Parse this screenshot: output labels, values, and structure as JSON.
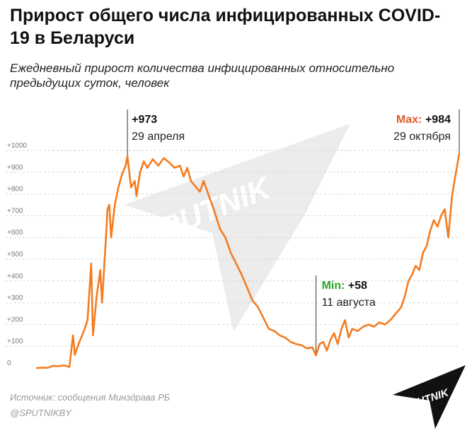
{
  "title": "Прирост общего числа инфицированных COVID-19 в Беларуси",
  "subtitle": "Ежедневный прирост количества инфицированных относительно предыдущих суток, человек",
  "source": "Источник: сообщения Минздрава РБ",
  "handle": "@SPUTNIKBY",
  "logo_text": "SPUTNIK",
  "watermark_text": "SPUTNIK",
  "colors": {
    "line": "#f47c20",
    "max_label": "#e05a2a",
    "min_label": "#2aa52a",
    "grid": "#d6d6d6",
    "annotation_line": "#333333"
  },
  "chart_data": {
    "type": "line",
    "ylim": [
      0,
      1000
    ],
    "yticks": [
      0,
      100,
      200,
      300,
      400,
      500,
      600,
      700,
      800,
      900,
      1000
    ],
    "ytick_labels": [
      "0",
      "+100",
      "+200",
      "+300",
      "+400",
      "+500",
      "+600",
      "+700",
      "+800",
      "+900",
      "+1000"
    ],
    "grid": "horizontal dashed",
    "x_start": "2020-03-10",
    "x_end": "2020-10-29",
    "series": [
      {
        "points": [
          [
            "2020-03-10",
            0
          ],
          [
            "2020-03-14",
            2
          ],
          [
            "2020-03-16",
            1
          ],
          [
            "2020-03-19",
            10
          ],
          [
            "2020-03-22",
            8
          ],
          [
            "2020-03-25",
            12
          ],
          [
            "2020-03-28",
            5
          ],
          [
            "2020-03-30",
            150
          ],
          [
            "2020-03-31",
            60
          ],
          [
            "2020-04-02",
            110
          ],
          [
            "2020-04-05",
            170
          ],
          [
            "2020-04-07",
            220
          ],
          [
            "2020-04-09",
            480
          ],
          [
            "2020-04-10",
            150
          ],
          [
            "2020-04-12",
            330
          ],
          [
            "2020-04-14",
            450
          ],
          [
            "2020-04-15",
            300
          ],
          [
            "2020-04-17",
            580
          ],
          [
            "2020-04-18",
            730
          ],
          [
            "2020-04-19",
            750
          ],
          [
            "2020-04-20",
            600
          ],
          [
            "2020-04-22",
            750
          ],
          [
            "2020-04-24",
            830
          ],
          [
            "2020-04-26",
            890
          ],
          [
            "2020-04-28",
            930
          ],
          [
            "2020-04-29",
            973
          ],
          [
            "2020-05-01",
            830
          ],
          [
            "2020-05-03",
            860
          ],
          [
            "2020-05-04",
            790
          ],
          [
            "2020-05-06",
            900
          ],
          [
            "2020-05-08",
            950
          ],
          [
            "2020-05-10",
            920
          ],
          [
            "2020-05-13",
            960
          ],
          [
            "2020-05-16",
            930
          ],
          [
            "2020-05-19",
            965
          ],
          [
            "2020-05-22",
            945
          ],
          [
            "2020-05-25",
            920
          ],
          [
            "2020-05-28",
            930
          ],
          [
            "2020-05-30",
            880
          ],
          [
            "2020-06-01",
            920
          ],
          [
            "2020-06-03",
            860
          ],
          [
            "2020-06-05",
            840
          ],
          [
            "2020-06-08",
            810
          ],
          [
            "2020-06-10",
            860
          ],
          [
            "2020-06-13",
            790
          ],
          [
            "2020-06-16",
            720
          ],
          [
            "2020-06-19",
            640
          ],
          [
            "2020-06-22",
            600
          ],
          [
            "2020-06-25",
            530
          ],
          [
            "2020-06-28",
            480
          ],
          [
            "2020-07-01",
            430
          ],
          [
            "2020-07-04",
            370
          ],
          [
            "2020-07-07",
            310
          ],
          [
            "2020-07-10",
            280
          ],
          [
            "2020-07-13",
            230
          ],
          [
            "2020-07-16",
            180
          ],
          [
            "2020-07-19",
            170
          ],
          [
            "2020-07-22",
            150
          ],
          [
            "2020-07-25",
            140
          ],
          [
            "2020-07-28",
            120
          ],
          [
            "2020-07-31",
            110
          ],
          [
            "2020-08-03",
            105
          ],
          [
            "2020-08-06",
            90
          ],
          [
            "2020-08-09",
            95
          ],
          [
            "2020-08-11",
            58
          ],
          [
            "2020-08-13",
            110
          ],
          [
            "2020-08-15",
            120
          ],
          [
            "2020-08-17",
            80
          ],
          [
            "2020-08-19",
            130
          ],
          [
            "2020-08-21",
            160
          ],
          [
            "2020-08-23",
            110
          ],
          [
            "2020-08-25",
            180
          ],
          [
            "2020-08-27",
            220
          ],
          [
            "2020-08-29",
            140
          ],
          [
            "2020-08-31",
            180
          ],
          [
            "2020-09-03",
            170
          ],
          [
            "2020-09-06",
            190
          ],
          [
            "2020-09-09",
            200
          ],
          [
            "2020-09-12",
            190
          ],
          [
            "2020-09-15",
            210
          ],
          [
            "2020-09-18",
            200
          ],
          [
            "2020-09-21",
            220
          ],
          [
            "2020-09-24",
            250
          ],
          [
            "2020-09-27",
            280
          ],
          [
            "2020-09-29",
            330
          ],
          [
            "2020-10-01",
            400
          ],
          [
            "2020-10-03",
            430
          ],
          [
            "2020-10-05",
            470
          ],
          [
            "2020-10-07",
            450
          ],
          [
            "2020-10-09",
            530
          ],
          [
            "2020-10-11",
            560
          ],
          [
            "2020-10-13",
            630
          ],
          [
            "2020-10-15",
            680
          ],
          [
            "2020-10-17",
            650
          ],
          [
            "2020-10-19",
            700
          ],
          [
            "2020-10-21",
            730
          ],
          [
            "2020-10-23",
            600
          ],
          [
            "2020-10-25",
            790
          ],
          [
            "2020-10-27",
            890
          ],
          [
            "2020-10-29",
            984
          ]
        ]
      }
    ],
    "annotations": [
      {
        "id": "peak",
        "date": "2020-04-29",
        "value": 973,
        "value_text": "+973",
        "date_text": "29 апреля"
      },
      {
        "id": "min",
        "date": "2020-08-11",
        "value": 58,
        "prefix": "Min:",
        "value_text": "+58",
        "date_text": "11 августа"
      },
      {
        "id": "max",
        "date": "2020-10-29",
        "value": 984,
        "prefix": "Max:",
        "value_text": "+984",
        "date_text": "29 октября"
      }
    ]
  }
}
